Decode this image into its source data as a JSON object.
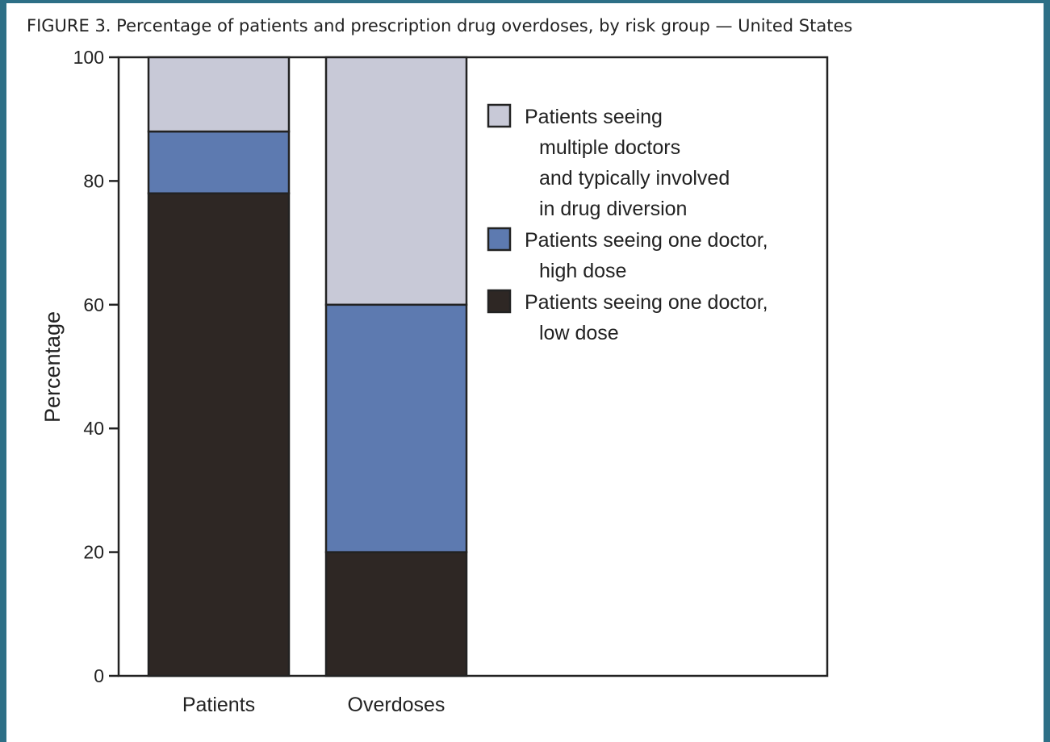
{
  "figure_title": "FIGURE 3. Percentage of patients and prescription drug overdoses, by risk group — United States",
  "colors": {
    "frame": "#2d6f86",
    "multiple_doctors": "#c8c9d7",
    "one_doctor_high": "#5d7ab0",
    "one_doctor_low": "#2e2724",
    "axis": "#222222"
  },
  "chart_data": {
    "type": "bar",
    "stacked": true,
    "categories": [
      "Patients",
      "Overdoses"
    ],
    "series": [
      {
        "name": "Patients seeing one doctor, low dose",
        "legend_lines": [
          "Patients seeing one doctor,",
          "low dose"
        ],
        "color": "#2e2724",
        "values": [
          78,
          20
        ]
      },
      {
        "name": "Patients seeing one doctor, high dose",
        "legend_lines": [
          "Patients seeing one doctor,",
          "high dose"
        ],
        "color": "#5d7ab0",
        "values": [
          10,
          40
        ]
      },
      {
        "name": "Patients seeing multiple doctors and typically involved in drug diversion",
        "legend_lines": [
          "Patients seeing",
          "multiple doctors",
          "and typically involved",
          "in drug diversion"
        ],
        "color": "#c8c9d7",
        "values": [
          12,
          40
        ]
      }
    ],
    "ylabel": "Percentage",
    "xlabel": "",
    "ylim": [
      0,
      100
    ],
    "yticks": [
      0,
      20,
      40,
      60,
      80,
      100
    ],
    "grid": false,
    "legend_position": "top-right inside plot",
    "legend_order": [
      "Patients seeing multiple doctors and typically involved in drug diversion",
      "Patients seeing one doctor, high dose",
      "Patients seeing one doctor, low dose"
    ]
  }
}
